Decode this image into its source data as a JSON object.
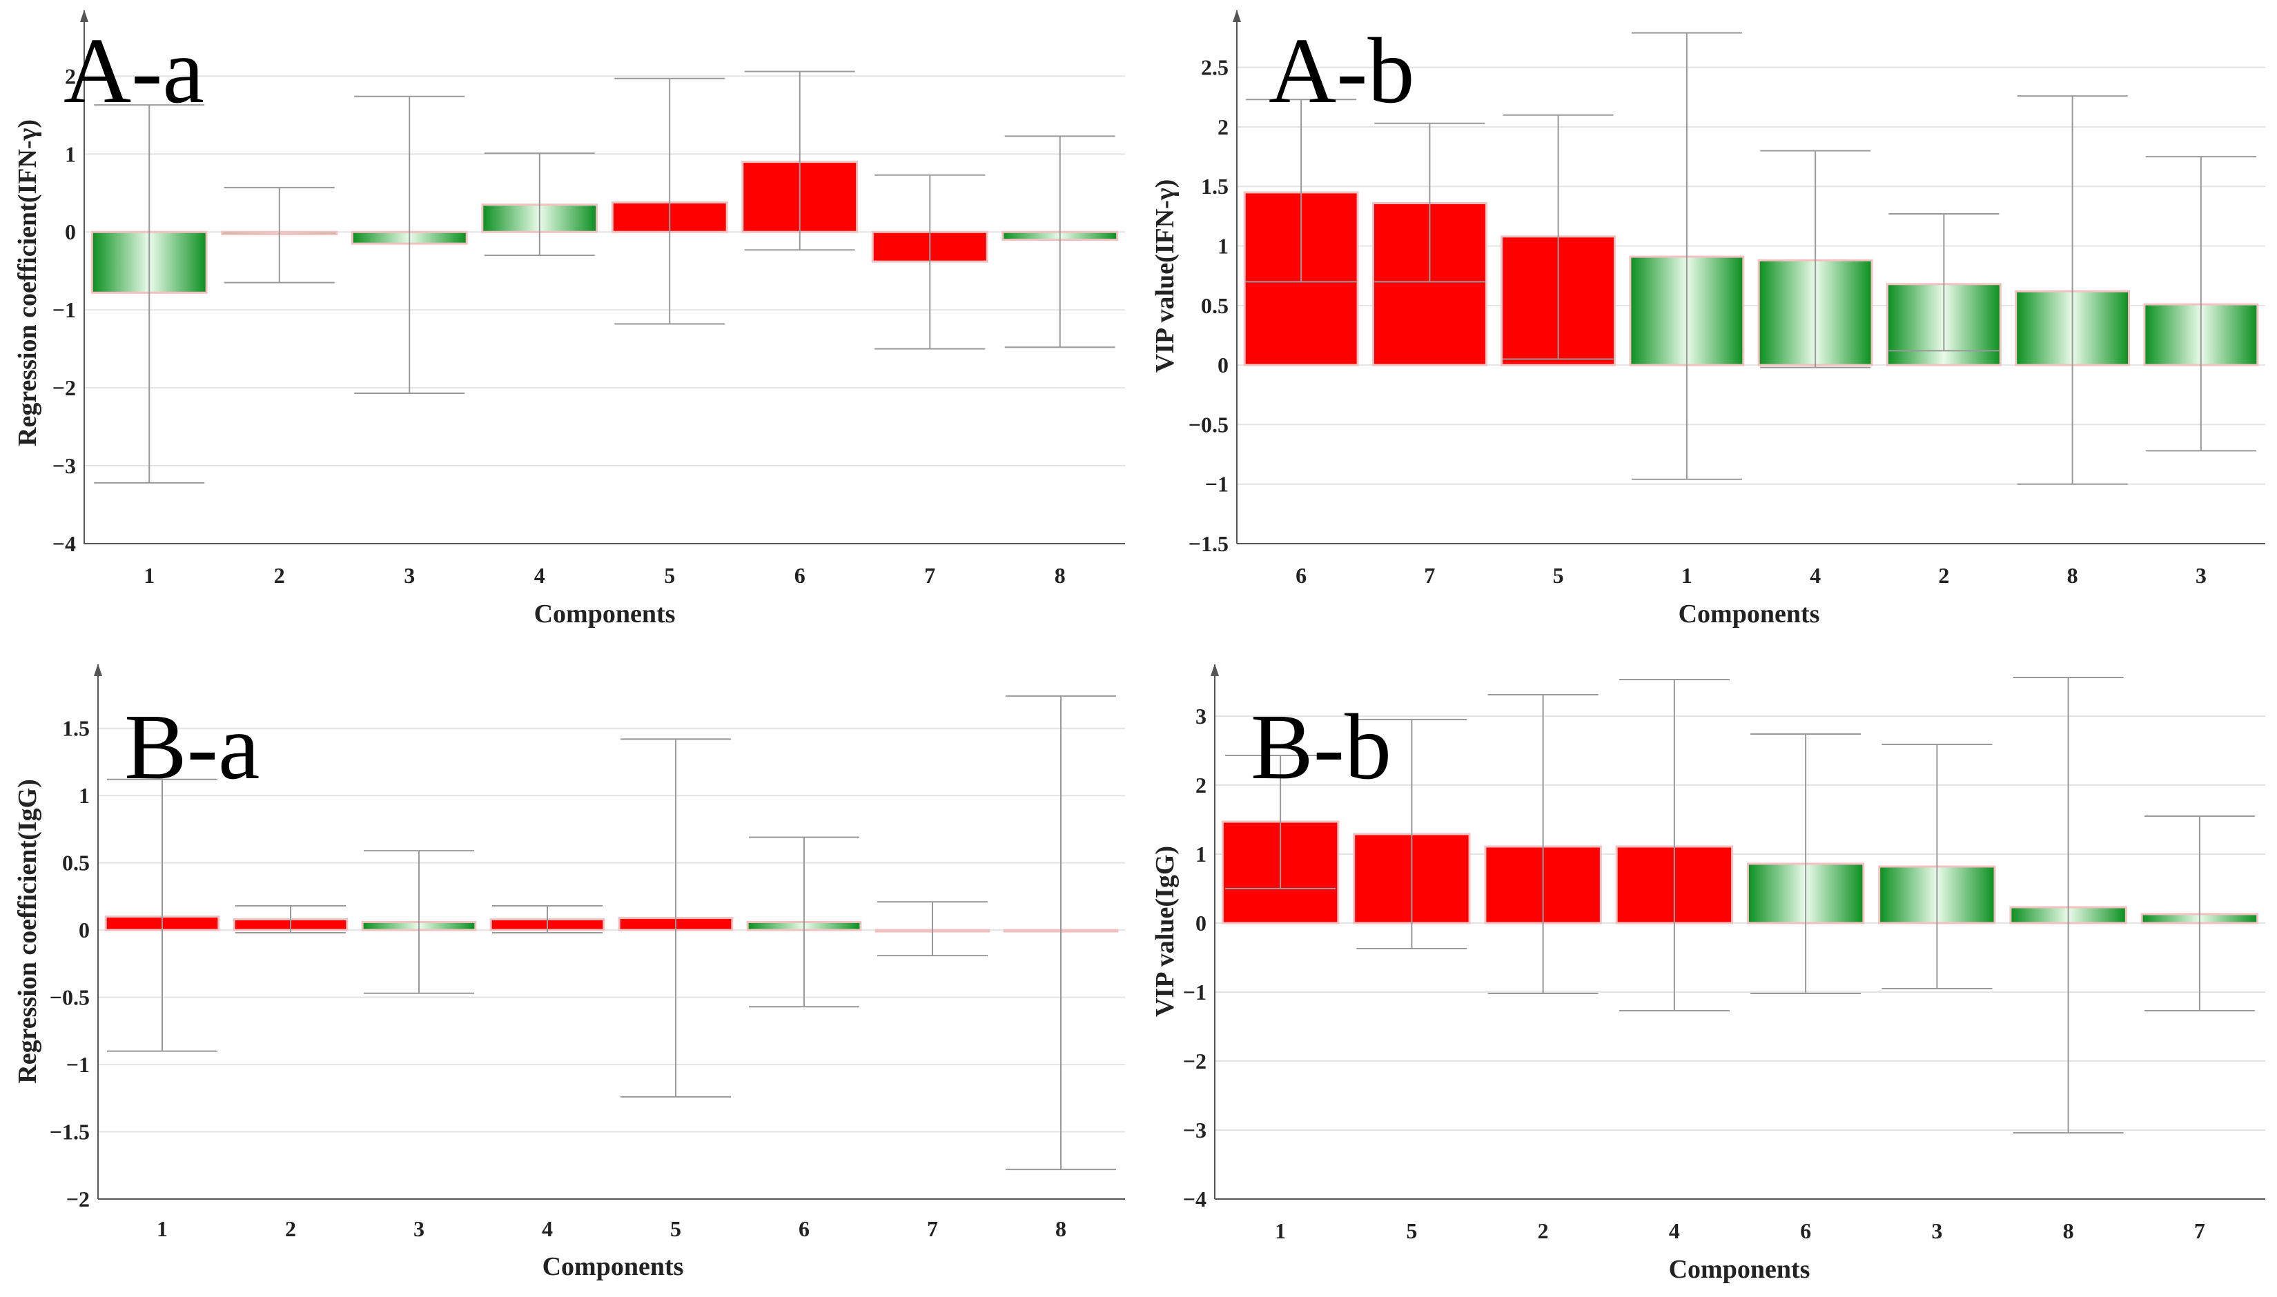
{
  "colors": {
    "positive": "#ff0000",
    "negative": "#129a2a",
    "errorbar": "#999999",
    "grid": "#e4e4e4",
    "axis": "#555555"
  },
  "chart_data": [
    {
      "panel_label": "A-a",
      "type": "bar",
      "title": "",
      "xlabel": "Components",
      "ylabel": "Regression coefficient(IFN-γ)",
      "categories": [
        "1",
        "2",
        "3",
        "4",
        "5",
        "6",
        "7",
        "8"
      ],
      "values": [
        -0.78,
        -0.03,
        -0.15,
        0.35,
        0.38,
        0.9,
        -0.38,
        -0.1
      ],
      "error_low": [
        -3.22,
        -0.65,
        -2.07,
        -0.3,
        -1.18,
        -0.23,
        -1.5,
        -1.48
      ],
      "error_high": [
        1.63,
        0.57,
        1.74,
        1.01,
        1.97,
        2.06,
        0.73,
        1.23
      ],
      "ylim": [
        -4,
        2.8
      ],
      "yticks": [
        -4,
        -3,
        -2,
        -1,
        0,
        1,
        2
      ],
      "ytick_labels": [
        "−4",
        "−3",
        "−2",
        "−1",
        "0",
        "1",
        "2"
      ],
      "grid": true
    },
    {
      "panel_label": "A-b",
      "type": "bar",
      "title": "",
      "xlabel": "Components",
      "ylabel": "VIP value(IFN-γ)",
      "categories": [
        "6",
        "7",
        "5",
        "1",
        "4",
        "2",
        "8",
        "3"
      ],
      "values": [
        1.45,
        1.36,
        1.08,
        0.91,
        0.88,
        0.68,
        0.62,
        0.51
      ],
      "error_low": [
        0.7,
        0.7,
        0.05,
        -0.96,
        -0.02,
        0.12,
        -1.0,
        -0.72
      ],
      "error_high": [
        2.23,
        2.03,
        2.1,
        2.79,
        1.8,
        1.27,
        2.26,
        1.75
      ],
      "ylim": [
        -1.5,
        2.95
      ],
      "yticks": [
        -1.5,
        -1,
        -0.5,
        0,
        0.5,
        1,
        1.5,
        2,
        2.5
      ],
      "ytick_labels": [
        "−1.5",
        "−1",
        "−0.5",
        "0",
        "0.5",
        "1",
        "1.5",
        "2",
        "2.5"
      ],
      "grid": true
    },
    {
      "panel_label": "B-a",
      "type": "bar",
      "title": "",
      "xlabel": "Components",
      "ylabel": "Regression coefficient(IgG)",
      "categories": [
        "1",
        "2",
        "3",
        "4",
        "5",
        "6",
        "7",
        "8"
      ],
      "values": [
        0.1,
        0.08,
        0.06,
        0.08,
        0.09,
        0.06,
        0.0,
        -0.01
      ],
      "error_low": [
        -0.9,
        -0.02,
        -0.47,
        -0.02,
        -1.24,
        -0.57,
        -0.19,
        -1.78
      ],
      "error_high": [
        1.12,
        0.18,
        0.59,
        0.18,
        1.42,
        0.69,
        0.21,
        1.74
      ],
      "ylim": [
        -2,
        1.95
      ],
      "yticks": [
        -2,
        -1.5,
        -1,
        -0.5,
        0,
        0.5,
        1,
        1.5
      ],
      "ytick_labels": [
        "−2",
        "−1.5",
        "−1",
        "−0.5",
        "0",
        "0.5",
        "1",
        "1.5"
      ],
      "grid": true
    },
    {
      "panel_label": "B-b",
      "type": "bar",
      "title": "",
      "xlabel": "Components",
      "ylabel": "VIP value(IgG)",
      "categories": [
        "1",
        "5",
        "2",
        "4",
        "6",
        "3",
        "8",
        "7"
      ],
      "values": [
        1.47,
        1.29,
        1.11,
        1.11,
        0.86,
        0.82,
        0.23,
        0.13
      ],
      "error_low": [
        0.5,
        -0.37,
        -1.02,
        -1.27,
        -1.02,
        -0.95,
        -3.04,
        -1.27
      ],
      "error_high": [
        2.43,
        2.95,
        3.31,
        3.53,
        2.74,
        2.59,
        3.56,
        1.55
      ],
      "ylim": [
        -4,
        3.7
      ],
      "yticks": [
        -4,
        -3,
        -2,
        -1,
        0,
        1,
        2,
        3
      ],
      "ytick_labels": [
        "−4",
        "−3",
        "−2",
        "−1",
        "0",
        "1",
        "2",
        "3"
      ],
      "grid": true
    }
  ]
}
